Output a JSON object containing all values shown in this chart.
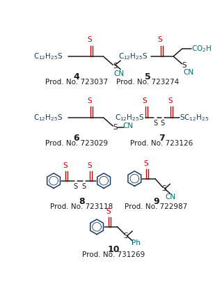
{
  "bg_color": "#ffffff",
  "color_blue": "#1a3a6b",
  "color_red": "#cc0000",
  "color_teal": "#007070",
  "color_black": "#1a1a1a",
  "compounds": [
    {
      "number": "4",
      "prod": "Prod. No. 723037"
    },
    {
      "number": "5",
      "prod": "Prod. No. 723274"
    },
    {
      "number": "6",
      "prod": "Prod. No. 723029"
    },
    {
      "number": "7",
      "prod": "Prod. No. 723126"
    },
    {
      "number": "8",
      "prod": "Prod. No. 723118"
    },
    {
      "number": "9",
      "prod": "Prod. No. 722987"
    },
    {
      "number": "10",
      "prod": "Prod. No. 731269"
    }
  ]
}
